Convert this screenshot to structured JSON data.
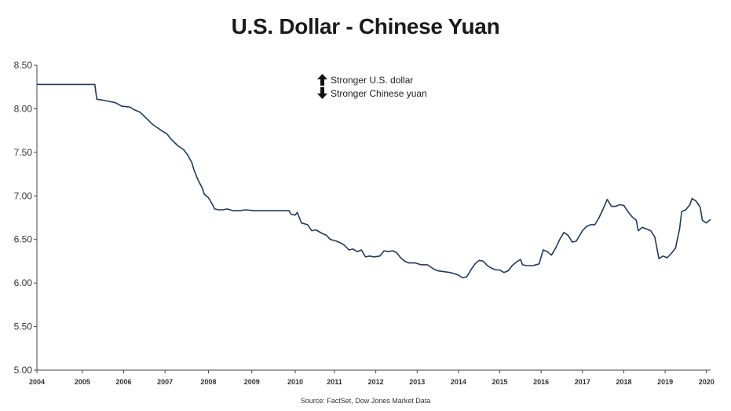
{
  "chart_data": {
    "type": "line",
    "title": "U.S. Dollar - Chinese Yuan",
    "source": "Source: FactSet, Dow Jones Market Data",
    "legend": [
      {
        "label": "Stronger U.S. dollar",
        "icon": "arrow-up-icon"
      },
      {
        "label": "Stronger Chinese yuan",
        "icon": "arrow-down-icon"
      }
    ],
    "ylim": [
      5.0,
      8.5
    ],
    "yticks": [
      "5.00",
      "5.50",
      "6.00",
      "6.50",
      "7.00",
      "7.50",
      "8.00",
      "8.50"
    ],
    "xlim": [
      2004.0,
      2020.3
    ],
    "xticks": [
      {
        "label": "2004",
        "x": 2004.0
      },
      {
        "label": "2005",
        "x": 2005.1
      },
      {
        "label": "2006",
        "x": 2006.1
      },
      {
        "label": "2007",
        "x": 2007.1
      },
      {
        "label": "2008",
        "x": 2008.15
      },
      {
        "label": "2009",
        "x": 2009.2
      },
      {
        "label": "2010",
        "x": 2010.25
      },
      {
        "label": "2011",
        "x": 2011.2
      },
      {
        "label": "2012",
        "x": 2012.2
      },
      {
        "label": "2013",
        "x": 2013.2
      },
      {
        "label": "2014",
        "x": 2014.2
      },
      {
        "label": "2015",
        "x": 2015.2
      },
      {
        "label": "2016",
        "x": 2016.2
      },
      {
        "label": "2017",
        "x": 2017.2
      },
      {
        "label": "2018",
        "x": 2018.2
      },
      {
        "label": "2019",
        "x": 2019.2
      },
      {
        "label": "2020",
        "x": 2020.2
      }
    ],
    "color": "#1f3a5f",
    "series": [
      {
        "points": [
          [
            2004.0,
            8.28
          ],
          [
            2005.4,
            8.28
          ],
          [
            2005.45,
            8.11
          ],
          [
            2005.7,
            8.09
          ],
          [
            2005.9,
            8.07
          ],
          [
            2006.05,
            8.03
          ],
          [
            2006.25,
            8.02
          ],
          [
            2006.35,
            7.99
          ],
          [
            2006.5,
            7.96
          ],
          [
            2006.65,
            7.89
          ],
          [
            2006.8,
            7.82
          ],
          [
            2006.95,
            7.77
          ],
          [
            2007.05,
            7.74
          ],
          [
            2007.15,
            7.71
          ],
          [
            2007.25,
            7.65
          ],
          [
            2007.4,
            7.58
          ],
          [
            2007.55,
            7.53
          ],
          [
            2007.65,
            7.47
          ],
          [
            2007.75,
            7.38
          ],
          [
            2007.8,
            7.3
          ],
          [
            2007.9,
            7.18
          ],
          [
            2008.0,
            7.09
          ],
          [
            2008.05,
            7.02
          ],
          [
            2008.15,
            6.98
          ],
          [
            2008.25,
            6.9
          ],
          [
            2008.3,
            6.85
          ],
          [
            2008.4,
            6.84
          ],
          [
            2008.5,
            6.84
          ],
          [
            2008.6,
            6.85
          ],
          [
            2008.75,
            6.83
          ],
          [
            2008.9,
            6.83
          ],
          [
            2009.05,
            6.84
          ],
          [
            2009.25,
            6.83
          ],
          [
            2009.5,
            6.83
          ],
          [
            2010.0,
            6.83
          ],
          [
            2010.1,
            6.83
          ],
          [
            2010.15,
            6.79
          ],
          [
            2010.25,
            6.78
          ],
          [
            2010.3,
            6.81
          ],
          [
            2010.4,
            6.69
          ],
          [
            2010.55,
            6.67
          ],
          [
            2010.65,
            6.6
          ],
          [
            2010.75,
            6.61
          ],
          [
            2010.9,
            6.57
          ],
          [
            2011.0,
            6.55
          ],
          [
            2011.1,
            6.5
          ],
          [
            2011.25,
            6.48
          ],
          [
            2011.35,
            6.46
          ],
          [
            2011.45,
            6.43
          ],
          [
            2011.55,
            6.38
          ],
          [
            2011.65,
            6.39
          ],
          [
            2011.75,
            6.36
          ],
          [
            2011.85,
            6.38
          ],
          [
            2011.95,
            6.3
          ],
          [
            2012.05,
            6.31
          ],
          [
            2012.15,
            6.3
          ],
          [
            2012.3,
            6.31
          ],
          [
            2012.4,
            6.37
          ],
          [
            2012.5,
            6.36
          ],
          [
            2012.6,
            6.37
          ],
          [
            2012.7,
            6.35
          ],
          [
            2012.8,
            6.29
          ],
          [
            2012.9,
            6.25
          ],
          [
            2013.0,
            6.23
          ],
          [
            2013.15,
            6.23
          ],
          [
            2013.3,
            6.21
          ],
          [
            2013.45,
            6.21
          ],
          [
            2013.6,
            6.16
          ],
          [
            2013.7,
            6.14
          ],
          [
            2013.85,
            6.13
          ],
          [
            2014.0,
            6.12
          ],
          [
            2014.15,
            6.1
          ],
          [
            2014.2,
            6.09
          ],
          [
            2014.3,
            6.06
          ],
          [
            2014.4,
            6.07
          ],
          [
            2014.5,
            6.15
          ],
          [
            2014.6,
            6.22
          ],
          [
            2014.7,
            6.26
          ],
          [
            2014.8,
            6.25
          ],
          [
            2014.9,
            6.2
          ],
          [
            2015.0,
            6.17
          ],
          [
            2015.1,
            6.15
          ],
          [
            2015.2,
            6.15
          ],
          [
            2015.3,
            6.12
          ],
          [
            2015.4,
            6.14
          ],
          [
            2015.5,
            6.2
          ],
          [
            2015.6,
            6.24
          ],
          [
            2015.7,
            6.27
          ],
          [
            2015.75,
            6.21
          ],
          [
            2015.85,
            6.2
          ],
          [
            2016.0,
            6.2
          ],
          [
            2016.15,
            6.22
          ],
          [
            2016.25,
            6.38
          ],
          [
            2016.35,
            6.36
          ],
          [
            2016.45,
            6.32
          ],
          [
            2016.55,
            6.4
          ],
          [
            2016.65,
            6.5
          ],
          [
            2016.75,
            6.58
          ],
          [
            2016.85,
            6.55
          ],
          [
            2016.95,
            6.47
          ],
          [
            2017.05,
            6.48
          ],
          [
            2017.2,
            6.6
          ],
          [
            2017.3,
            6.65
          ],
          [
            2017.4,
            6.67
          ],
          [
            2017.5,
            6.67
          ],
          [
            2017.6,
            6.75
          ],
          [
            2017.7,
            6.85
          ],
          [
            2017.8,
            6.96
          ],
          [
            2017.9,
            6.88
          ],
          [
            2018.0,
            6.88
          ],
          [
            2018.1,
            6.9
          ],
          [
            2018.2,
            6.89
          ],
          [
            2018.3,
            6.82
          ],
          [
            2018.4,
            6.76
          ],
          [
            2018.5,
            6.72
          ],
          [
            2018.55,
            6.6
          ],
          [
            2018.65,
            6.64
          ],
          [
            2018.75,
            6.62
          ],
          [
            2018.85,
            6.6
          ],
          [
            2018.95,
            6.53
          ],
          [
            2019.05,
            6.28
          ],
          [
            2019.15,
            6.31
          ],
          [
            2019.25,
            6.29
          ],
          [
            2019.35,
            6.34
          ],
          [
            2019.45,
            6.4
          ],
          [
            2019.55,
            6.62
          ],
          [
            2019.6,
            6.82
          ],
          [
            2019.7,
            6.84
          ],
          [
            2019.8,
            6.9
          ],
          [
            2019.85,
            6.97
          ],
          [
            2019.95,
            6.94
          ],
          [
            2020.05,
            6.87
          ],
          [
            2020.1,
            6.72
          ],
          [
            2020.2,
            6.69
          ],
          [
            2020.3,
            6.73
          ]
        ]
      }
    ]
  }
}
